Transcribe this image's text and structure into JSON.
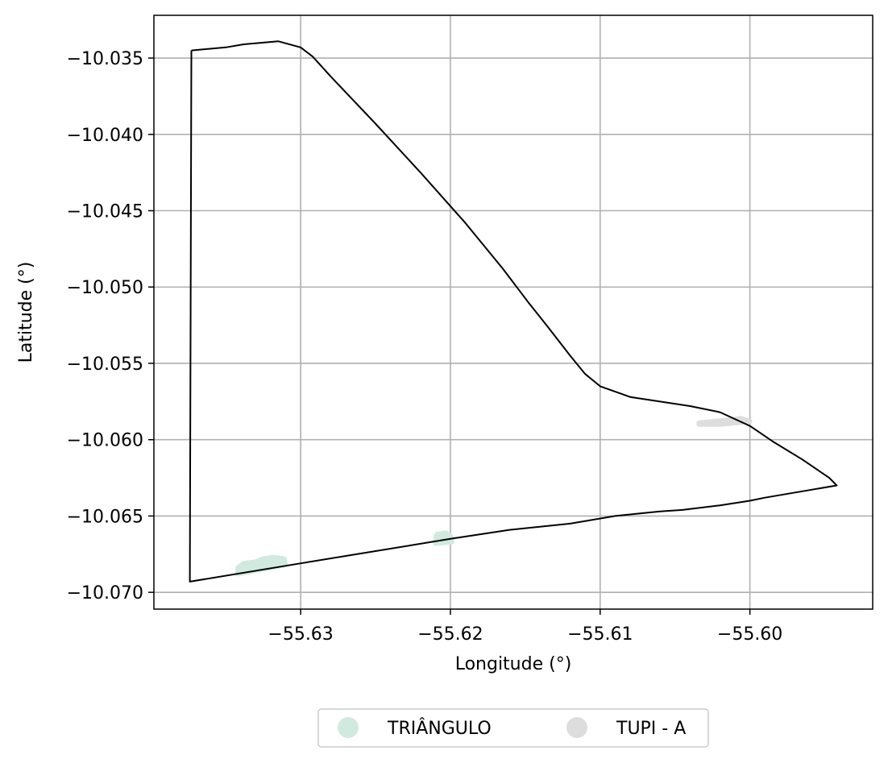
{
  "chart_data": {
    "type": "map",
    "title": "",
    "xlabel": "Longitude (°)",
    "ylabel": "Latitude (°)",
    "xlim": [
      -55.6398,
      -55.5918
    ],
    "ylim": [
      -10.0711,
      -10.0322
    ],
    "grid": true,
    "x_ticks": [
      -55.63,
      -55.62,
      -55.61,
      -55.6
    ],
    "x_tick_labels": [
      "−55.63",
      "−55.62",
      "−55.61",
      "−55.60"
    ],
    "y_ticks": [
      -10.035,
      -10.04,
      -10.045,
      -10.05,
      -10.055,
      -10.06,
      -10.065,
      -10.07
    ],
    "y_tick_labels": [
      "−10.035",
      "−10.040",
      "−10.045",
      "−10.050",
      "−10.055",
      "−10.060",
      "−10.065",
      "−10.070"
    ],
    "legend": {
      "placement": "bottom-center",
      "entries": [
        {
          "label": "TRIÂNGULO",
          "color": "#d0eadf"
        },
        {
          "label": "TUPI - A",
          "color": "#dddddd"
        }
      ]
    },
    "boundary": {
      "name": "field-boundary",
      "color": "#000000",
      "points": [
        [
          -55.6373,
          -10.0345
        ],
        [
          -55.635,
          -10.0343
        ],
        [
          -55.6338,
          -10.0341
        ],
        [
          -55.6315,
          -10.0339
        ],
        [
          -55.63,
          -10.0343
        ],
        [
          -55.6292,
          -10.0349
        ],
        [
          -55.628,
          -10.0362
        ],
        [
          -55.625,
          -10.0393
        ],
        [
          -55.622,
          -10.0425
        ],
        [
          -55.619,
          -10.0458
        ],
        [
          -55.6165,
          -10.0488
        ],
        [
          -55.6148,
          -10.051
        ],
        [
          -55.6135,
          -10.0526
        ],
        [
          -55.612,
          -10.0545
        ],
        [
          -55.611,
          -10.0557
        ],
        [
          -55.61,
          -10.0565
        ],
        [
          -55.608,
          -10.0572
        ],
        [
          -55.604,
          -10.0578
        ],
        [
          -55.602,
          -10.0582
        ],
        [
          -55.6,
          -10.0591
        ],
        [
          -55.5985,
          -10.0601
        ],
        [
          -55.5965,
          -10.0613
        ],
        [
          -55.5947,
          -10.0625
        ],
        [
          -55.5942,
          -10.063
        ],
        [
          -55.596,
          -10.0633
        ],
        [
          -55.599,
          -10.0638
        ],
        [
          -55.6,
          -10.064
        ],
        [
          -55.602,
          -10.0643
        ],
        [
          -55.6045,
          -10.0646
        ],
        [
          -55.606,
          -10.0647
        ],
        [
          -55.609,
          -10.065
        ],
        [
          -55.612,
          -10.0655
        ],
        [
          -55.616,
          -10.0659
        ],
        [
          -55.62,
          -10.0665
        ],
        [
          -55.625,
          -10.0673
        ],
        [
          -55.63,
          -10.0681
        ],
        [
          -55.6374,
          -10.0693
        ],
        [
          -55.6373,
          -10.0345
        ]
      ]
    },
    "series": [
      {
        "name": "TRIÂNGULO",
        "color": "#d0eadf",
        "polygons": [
          [
            [
              -55.6342,
              -10.0684
            ],
            [
              -55.6338,
              -10.0681
            ],
            [
              -55.633,
              -10.068
            ],
            [
              -55.6325,
              -10.0678
            ],
            [
              -55.6318,
              -10.0677
            ],
            [
              -55.6311,
              -10.0678
            ],
            [
              -55.631,
              -10.0682
            ],
            [
              -55.6342,
              -10.0688
            ]
          ],
          [
            [
              -55.621,
              -10.0665
            ],
            [
              -55.6209,
              -10.0662
            ],
            [
              -55.6203,
              -10.0661
            ],
            [
              -55.62,
              -10.0663
            ],
            [
              -55.6199,
              -10.0667
            ],
            [
              -55.621,
              -10.0668
            ]
          ]
        ]
      },
      {
        "name": "TUPI - A",
        "color": "#dddddd",
        "polygons": [
          [
            [
              -55.6034,
              -10.0589
            ],
            [
              -55.6024,
              -10.0588
            ],
            [
              -55.6014,
              -10.0587
            ],
            [
              -55.6006,
              -10.0586
            ],
            [
              -55.6,
              -10.0588
            ],
            [
              -55.601,
              -10.0589
            ],
            [
              -55.602,
              -10.059
            ],
            [
              -55.6034,
              -10.059
            ]
          ]
        ]
      }
    ]
  }
}
